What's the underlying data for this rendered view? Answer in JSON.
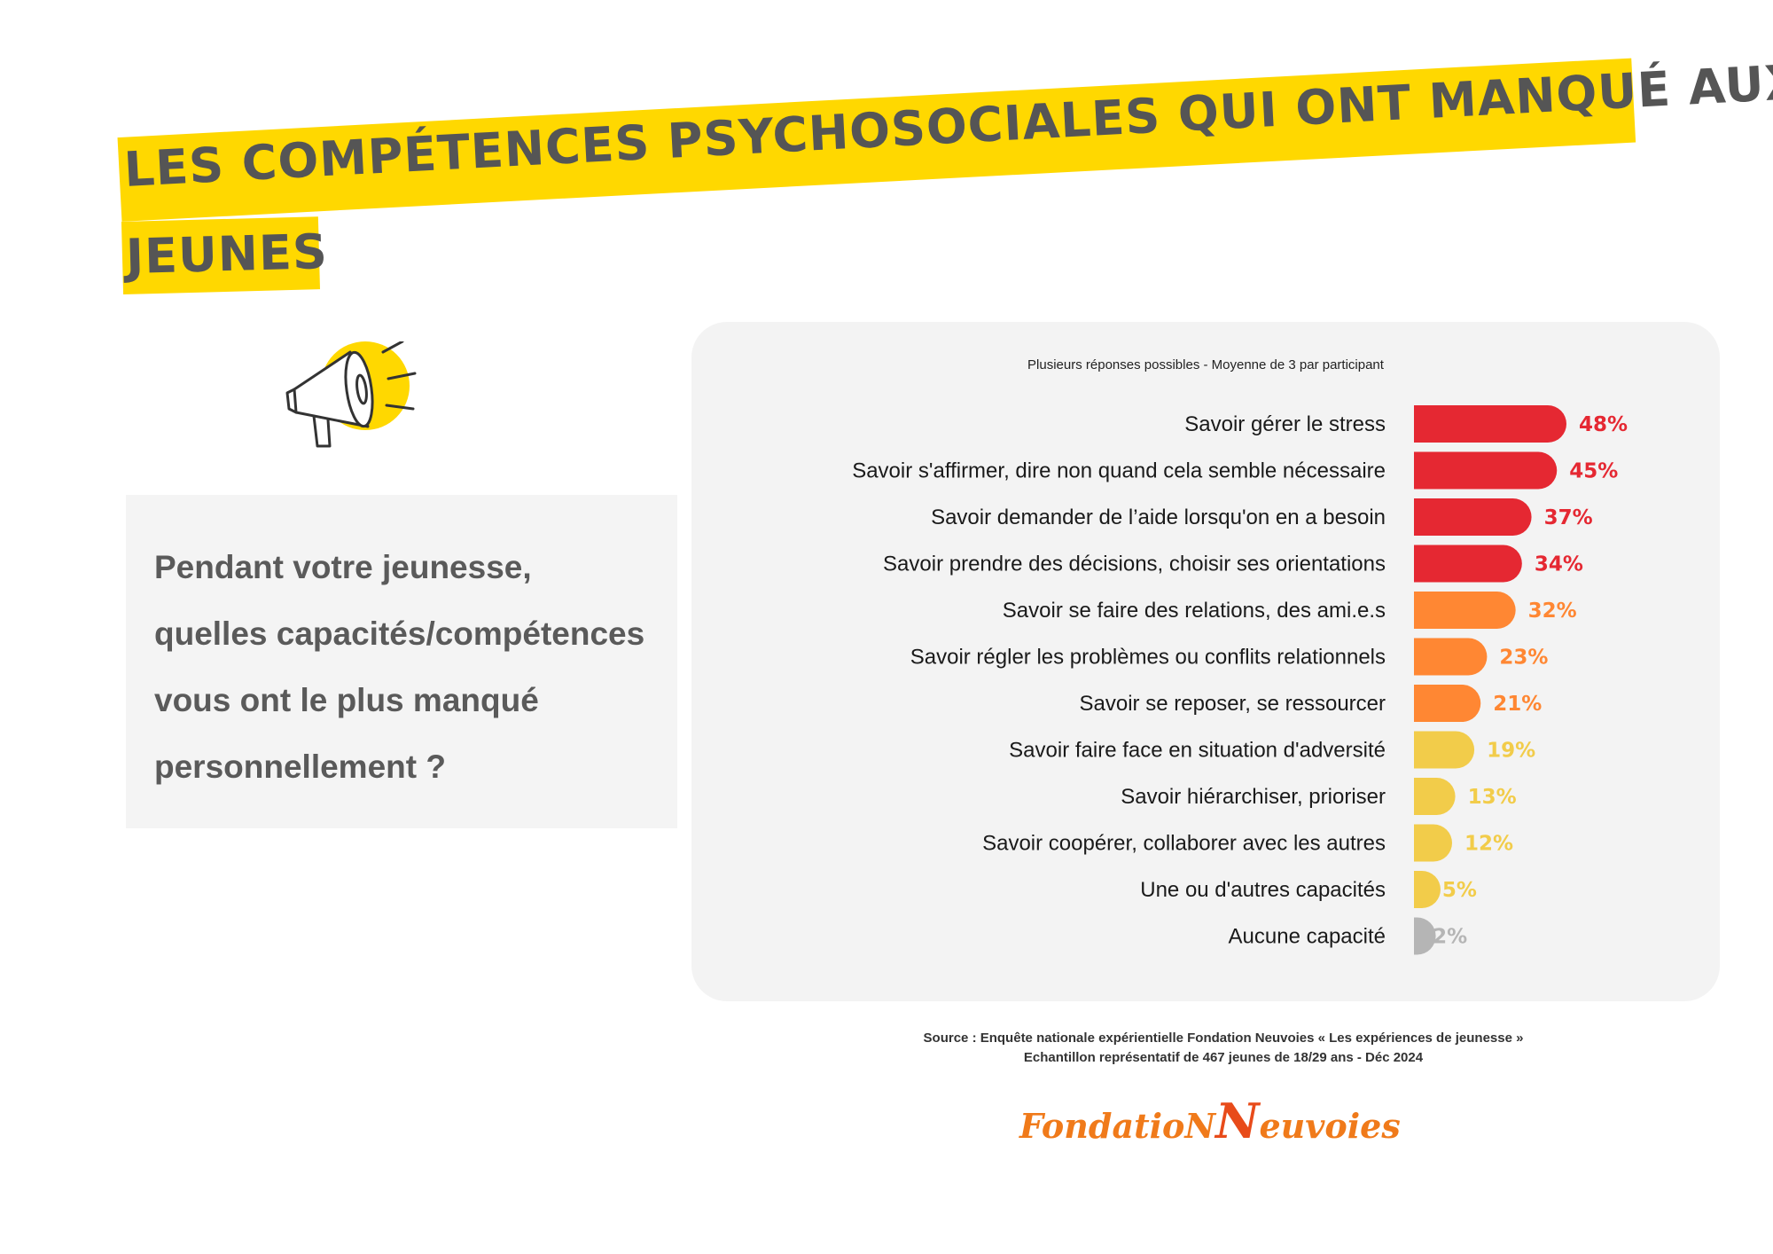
{
  "title": {
    "line1": "LES COMPÉTENCES PSYCHOSOCIALES QUI ONT MANQUÉ AUX",
    "line2": "JEUNES"
  },
  "question": {
    "lines": [
      "Pendant votre jeunesse,",
      "quelles capacités/compétences",
      "vous ont le plus manqué",
      "personnellement ?"
    ]
  },
  "icon": "megaphone-icon",
  "chart_data": {
    "type": "bar",
    "orientation": "horizontal",
    "subtitle": "Plusieurs réponses possibles - Moyenne de 3 par participant",
    "categories": [
      "Savoir gérer le stress",
      "Savoir s'affirmer, dire non quand cela semble nécessaire",
      "Savoir demander de l’aide lorsqu'on en a besoin",
      "Savoir prendre des décisions, choisir ses orientations",
      "Savoir se faire des relations, des ami.e.s",
      "Savoir régler les problèmes ou conflits relationnels",
      "Savoir se reposer, se ressourcer",
      "Savoir faire face en situation d'adversité",
      "Savoir hiérarchiser, prioriser",
      "Savoir coopérer, collaborer avec les autres",
      "Une ou d'autres capacités",
      "Aucune capacité"
    ],
    "values": [
      48,
      45,
      37,
      34,
      32,
      23,
      21,
      19,
      13,
      12,
      5,
      2
    ],
    "labels": [
      "48%",
      "45%",
      "37%",
      "34%",
      "32%",
      "23%",
      "21%",
      "19%",
      "13%",
      "12%",
      "5%",
      "2%"
    ],
    "colors": [
      "#e52832",
      "#e52832",
      "#e52832",
      "#e52832",
      "#ff8733",
      "#ff8733",
      "#ff8733",
      "#f2cc4a",
      "#f2cc4a",
      "#f2cc4a",
      "#f2cc4a",
      "#b5b5b5"
    ],
    "label_colors": [
      "#e52832",
      "#e52832",
      "#e52832",
      "#e52832",
      "#ff8733",
      "#ff8733",
      "#ff8733",
      "#f2cc4a",
      "#f2cc4a",
      "#f2cc4a",
      "#f2cc4a",
      "#b5b5b5"
    ],
    "xlim": [
      0,
      48
    ],
    "grid": false,
    "legend": "none"
  },
  "source": {
    "line1": "Source : Enquête nationale expérientielle Fondation Neuvoies « Les expériences de jeunesse »",
    "line2": "Echantillon représentatif de 467 jeunes de 18/29 ans -  Déc 2024"
  },
  "logo": {
    "part1": "FondatioN",
    "part2": "N",
    "part3": "euvoies"
  },
  "colors": {
    "title_band": "#ffd800",
    "title_text": "#555555",
    "card_bg": "#f3f3f3"
  }
}
